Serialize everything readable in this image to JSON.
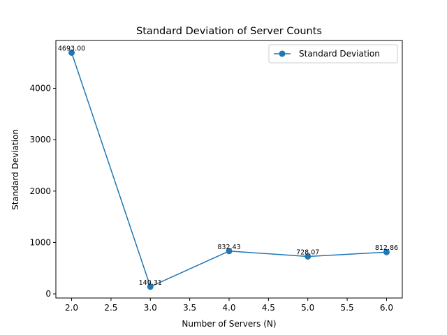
{
  "chart_data": {
    "type": "line",
    "title": "Standard Deviation of Server Counts",
    "xlabel": "Number of Servers (N)",
    "ylabel": "Standard Deviation",
    "xlim": [
      1.8,
      6.2
    ],
    "ylim": [
      -80,
      4930
    ],
    "x_ticks": [
      2.0,
      2.5,
      3.0,
      3.5,
      4.0,
      4.5,
      5.0,
      5.5,
      6.0
    ],
    "x_tick_labels": [
      "2.0",
      "2.5",
      "3.0",
      "3.5",
      "4.0",
      "4.5",
      "5.0",
      "5.5",
      "6.0"
    ],
    "y_ticks": [
      0,
      1000,
      2000,
      3000,
      4000
    ],
    "y_tick_labels": [
      "0",
      "1000",
      "2000",
      "3000",
      "4000"
    ],
    "grid": false,
    "legend_position": "top-right",
    "series": [
      {
        "name": "Standard Deviation",
        "color": "#1f77b4",
        "marker": "circle",
        "x": [
          2,
          3,
          4,
          5,
          6
        ],
        "y": [
          4693.0,
          140.31,
          832.43,
          728.07,
          812.86
        ],
        "labels": [
          "4693.00",
          "140.31",
          "832.43",
          "728.07",
          "812.86"
        ]
      }
    ]
  }
}
